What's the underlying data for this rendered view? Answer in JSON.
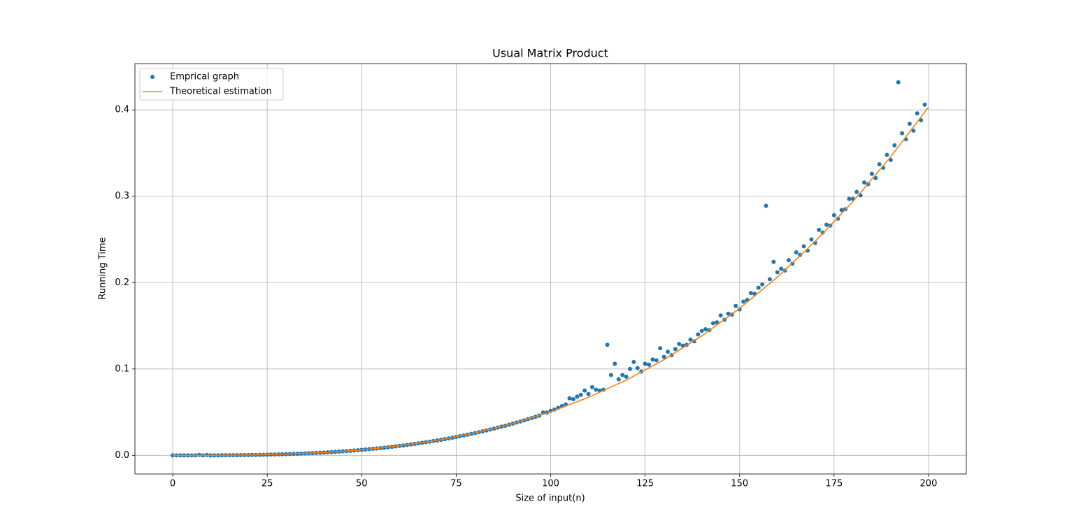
{
  "chart_data": {
    "type": "scatter",
    "title": "Usual Matrix Product",
    "x_label": "Size of input(n)",
    "y_label": "Running Time",
    "xlim": [
      -10,
      210
    ],
    "ylim": [
      -0.0216,
      0.4536
    ],
    "xticks": [
      0,
      25,
      50,
      75,
      100,
      125,
      150,
      175,
      200
    ],
    "yticks": [
      {
        "value": 0,
        "label": "0.0"
      },
      0.1,
      0.2,
      0.3,
      0.4
    ],
    "grid": true,
    "legend": "upper left",
    "series": [
      {
        "name": "Emprical graph",
        "type": "scatter",
        "color": "#1f77b4",
        "x": [
          0,
          1,
          2,
          3,
          4,
          5,
          6,
          7,
          8,
          9,
          10,
          11,
          12,
          13,
          14,
          15,
          16,
          17,
          18,
          19,
          20,
          21,
          22,
          23,
          24,
          25,
          26,
          27,
          28,
          29,
          30,
          31,
          32,
          33,
          34,
          35,
          36,
          37,
          38,
          39,
          40,
          41,
          42,
          43,
          44,
          45,
          46,
          47,
          48,
          49,
          50,
          51,
          52,
          53,
          54,
          55,
          56,
          57,
          58,
          59,
          60,
          61,
          62,
          63,
          64,
          65,
          66,
          67,
          68,
          69,
          70,
          71,
          72,
          73,
          74,
          75,
          76,
          77,
          78,
          79,
          80,
          81,
          82,
          83,
          84,
          85,
          86,
          87,
          88,
          89,
          90,
          91,
          92,
          93,
          94,
          95,
          96,
          97,
          98,
          99,
          100,
          101,
          102,
          103,
          104,
          105,
          106,
          107,
          108,
          109,
          110,
          111,
          112,
          113,
          114,
          115,
          116,
          117,
          118,
          119,
          120,
          121,
          122,
          123,
          124,
          125,
          126,
          127,
          128,
          129,
          130,
          131,
          132,
          133,
          134,
          135,
          136,
          137,
          138,
          139,
          140,
          141,
          142,
          143,
          144,
          145,
          146,
          147,
          148,
          149,
          150,
          151,
          152,
          153,
          154,
          155,
          156,
          157,
          158,
          159,
          160,
          161,
          162,
          163,
          164,
          165,
          166,
          167,
          168,
          169,
          170,
          171,
          172,
          173,
          174,
          175,
          176,
          177,
          178,
          179,
          180,
          181,
          182,
          183,
          184,
          185,
          186,
          187,
          188,
          189,
          190,
          191,
          192,
          193,
          194,
          195,
          196,
          197,
          198,
          199
        ],
        "values": [
          0,
          0,
          0,
          0,
          0,
          0,
          0,
          0.0005,
          0,
          0.0004,
          0,
          0,
          0,
          0.0002,
          0.0002,
          0.0002,
          0.0002,
          0.0002,
          0.0003,
          0.0003,
          0.0004,
          0.0005,
          0.0005,
          0.0006,
          0.0007,
          0.0008,
          0.0009,
          0.001,
          0.0011,
          0.0012,
          0.0014,
          0.0015,
          0.0017,
          0.0018,
          0.002,
          0.0022,
          0.0024,
          0.0026,
          0.0028,
          0.003,
          0.0032,
          0.0035,
          0.0037,
          0.004,
          0.0043,
          0.0046,
          0.0049,
          0.0052,
          0.0056,
          0.0059,
          0.0063,
          0.0067,
          0.0071,
          0.0075,
          0.0079,
          0.0084,
          0.0089,
          0.0093,
          0.0098,
          0.0104,
          0.0109,
          0.0114,
          0.012,
          0.0126,
          0.0132,
          0.0138,
          0.0145,
          0.0152,
          0.0158,
          0.0166,
          0.0173,
          0.018,
          0.0188,
          0.0196,
          0.0204,
          0.0213,
          0.0221,
          0.023,
          0.0239,
          0.0248,
          0.0258,
          0.0268,
          0.0278,
          0.0288,
          0.0299,
          0.0309,
          0.0321,
          0.0332,
          0.0343,
          0.0355,
          0.0367,
          0.038,
          0.0392,
          0.0405,
          0.0419,
          0.0432,
          0.0446,
          0.046,
          0.0495,
          0.0495,
          0.0515,
          0.053,
          0.055,
          0.057,
          0.059,
          0.066,
          0.065,
          0.068,
          0.07,
          0.075,
          0.071,
          0.079,
          0.076,
          0.075,
          0.076,
          0.128,
          0.093,
          0.106,
          0.088,
          0.093,
          0.091,
          0.1,
          0.108,
          0.101,
          0.097,
          0.106,
          0.105,
          0.111,
          0.11,
          0.124,
          0.114,
          0.12,
          0.116,
          0.123,
          0.129,
          0.127,
          0.128,
          0.134,
          0.132,
          0.14,
          0.144,
          0.146,
          0.145,
          0.153,
          0.154,
          0.162,
          0.157,
          0.164,
          0.163,
          0.173,
          0.169,
          0.178,
          0.18,
          0.188,
          0.187,
          0.194,
          0.198,
          0.289,
          0.204,
          0.224,
          0.212,
          0.216,
          0.214,
          0.226,
          0.222,
          0.235,
          0.232,
          0.242,
          0.237,
          0.25,
          0.246,
          0.261,
          0.258,
          0.267,
          0.266,
          0.278,
          0.274,
          0.284,
          0.285,
          0.297,
          0.297,
          0.305,
          0.301,
          0.316,
          0.314,
          0.326,
          0.321,
          0.337,
          0.333,
          0.348,
          0.342,
          0.359,
          0.432,
          0.373,
          0.366,
          0.384,
          0.376,
          0.396,
          0.388,
          0.406
        ]
      },
      {
        "name": "Theoretical estimation",
        "type": "line",
        "color": "#ff7f0e",
        "x": [
          0,
          10,
          20,
          30,
          40,
          50,
          60,
          70,
          80,
          90,
          100,
          110,
          120,
          130,
          140,
          150,
          160,
          170,
          180,
          190,
          200
        ],
        "values": [
          0,
          5e-05,
          0.0004,
          0.0014,
          0.0032,
          0.0063,
          0.0109,
          0.0173,
          0.0258,
          0.0367,
          0.0504,
          0.0671,
          0.0871,
          0.1107,
          0.1383,
          0.1701,
          0.2064,
          0.2476,
          0.2939,
          0.3457,
          0.4032
        ]
      }
    ]
  }
}
